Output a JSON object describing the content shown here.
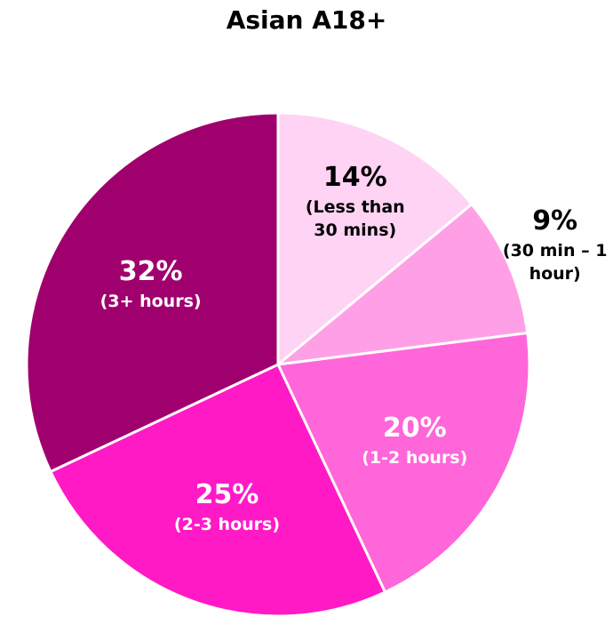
{
  "chart_data": {
    "type": "pie",
    "title": "Asian A18+",
    "categories": [
      "(Less than 30 mins)",
      "(30 min – 1 hour)",
      "(1-2 hours)",
      "(2-3 hours)",
      "(3+ hours)"
    ],
    "values": [
      14,
      9,
      20,
      25,
      32
    ],
    "value_labels": [
      "14%",
      "9%",
      "20%",
      "25%",
      "32%"
    ],
    "colors": [
      "#ffd3f3",
      "#ffa0e6",
      "#ff66d9",
      "#ff1ac6",
      "#a0006e"
    ],
    "label_colors": [
      "#000000",
      "#000000",
      "#ffffff",
      "#ffffff",
      "#ffffff"
    ]
  }
}
